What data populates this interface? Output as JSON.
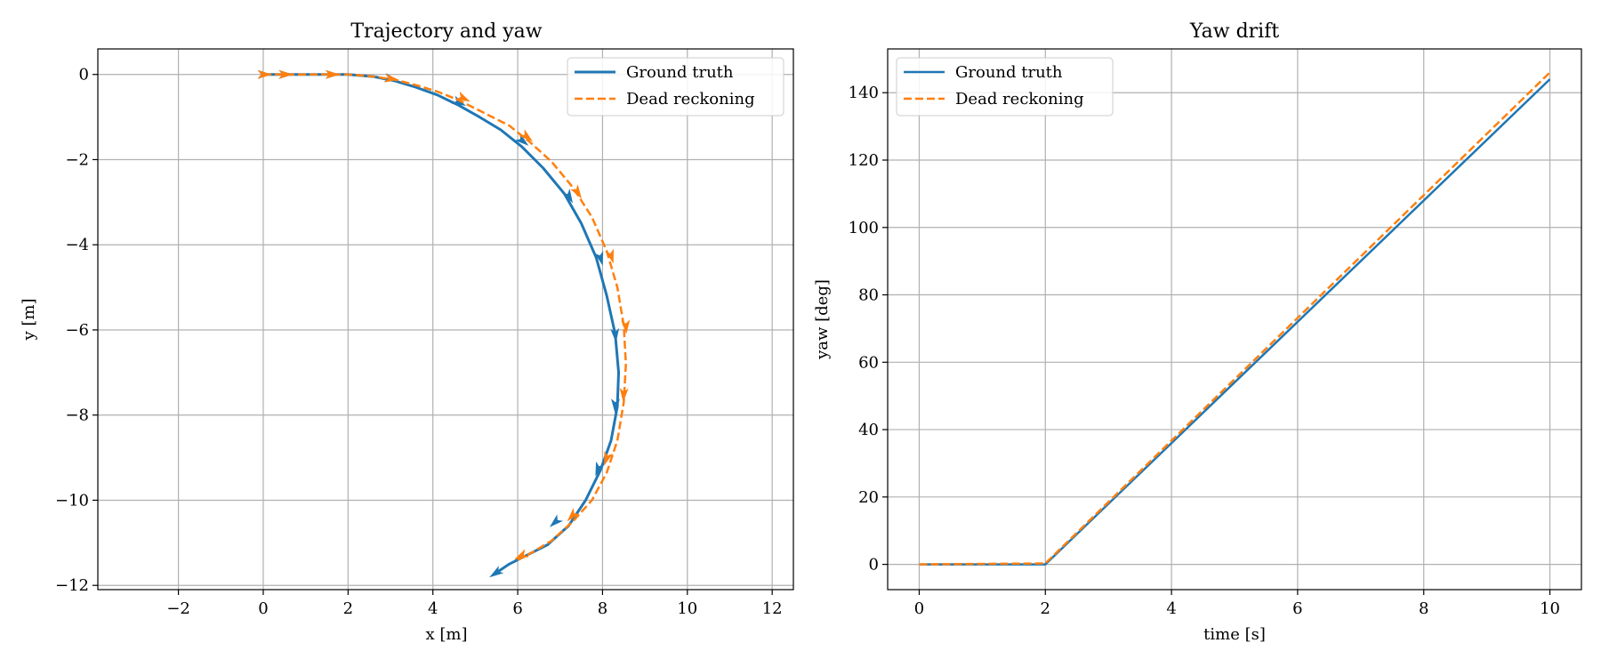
{
  "colors": {
    "ground_truth": "#1f77b4",
    "dead_reckoning": "#ff7f0e",
    "grid": "#b0b0b0",
    "axes": "#000000"
  },
  "chart_data": [
    {
      "type": "line",
      "title": "Trajectory and yaw",
      "xlabel": "x [m]",
      "ylabel": "y [m]",
      "xlim": [
        -3.9,
        12.5
      ],
      "ylim": [
        -12.1,
        0.6
      ],
      "xticks": [
        -2,
        0,
        2,
        4,
        6,
        8,
        10,
        12
      ],
      "yticks": [
        0,
        -2,
        -4,
        -6,
        -8,
        -10,
        -12
      ],
      "xtick_labels": [
        "−2",
        "0",
        "2",
        "4",
        "6",
        "8",
        "10",
        "12"
      ],
      "ytick_labels": [
        "0",
        "−2",
        "−4",
        "−6",
        "−8",
        "−10",
        "−12"
      ],
      "grid": true,
      "legend_position": "upper-right",
      "direction_arrows": true,
      "series": [
        {
          "name": "Ground truth",
          "style": "solid",
          "x": [
            0,
            0.5,
            1.0,
            1.5,
            2.0,
            2.6,
            3.1,
            3.6,
            4.1,
            4.6,
            5.1,
            5.6,
            6.1,
            6.6,
            7.1,
            7.5,
            7.85,
            8.1,
            8.3,
            8.38,
            8.35,
            8.2,
            7.95,
            7.6,
            7.2,
            6.7,
            6.2,
            5.8,
            5.5
          ],
          "y": [
            0,
            0,
            0,
            0,
            0,
            -0.05,
            -0.15,
            -0.3,
            -0.48,
            -0.72,
            -1.0,
            -1.3,
            -1.7,
            -2.2,
            -2.8,
            -3.5,
            -4.3,
            -5.2,
            -6.1,
            -7.0,
            -7.8,
            -8.6,
            -9.3,
            -10.0,
            -10.6,
            -11.05,
            -11.3,
            -11.5,
            -11.7
          ],
          "arrow_x": [
            0.0,
            0.5,
            1.6,
            3.0,
            4.6,
            6.1,
            7.2,
            7.95,
            8.3,
            8.3,
            7.9,
            6.9,
            5.5
          ],
          "arrow_y": [
            0.0,
            0.0,
            0.0,
            -0.1,
            -0.65,
            -1.55,
            -2.85,
            -4.3,
            -6.1,
            -7.75,
            -9.25,
            -10.5,
            -11.7
          ]
        },
        {
          "name": "Dead reckoning",
          "style": "dashed",
          "x": [
            0,
            0.5,
            1.0,
            1.5,
            2.0,
            2.6,
            3.1,
            3.6,
            4.1,
            4.6,
            5.2,
            5.8,
            6.3,
            6.8,
            7.3,
            7.75,
            8.1,
            8.35,
            8.5,
            8.55,
            8.5,
            8.35,
            8.1,
            7.75,
            7.3,
            6.8,
            6.3,
            6.0
          ],
          "y": [
            0,
            0,
            0,
            0,
            0,
            -0.05,
            -0.12,
            -0.25,
            -0.4,
            -0.6,
            -0.9,
            -1.2,
            -1.6,
            -2.05,
            -2.65,
            -3.35,
            -4.15,
            -5.0,
            -5.9,
            -6.8,
            -7.7,
            -8.6,
            -9.35,
            -10.0,
            -10.5,
            -10.95,
            -11.25,
            -11.4
          ],
          "arrow_x": [
            0.0,
            0.5,
            1.6,
            3.0,
            4.7,
            6.2,
            7.4,
            8.2,
            8.55,
            8.5,
            8.1,
            7.3,
            6.1
          ],
          "arrow_y": [
            0.0,
            0.0,
            0.0,
            -0.1,
            -0.55,
            -1.45,
            -2.75,
            -4.25,
            -5.9,
            -7.5,
            -9.0,
            -10.35,
            -11.3
          ]
        }
      ]
    },
    {
      "type": "line",
      "title": "Yaw drift",
      "xlabel": "time [s]",
      "ylabel": "yaw [deg]",
      "xlim": [
        -0.5,
        10.5
      ],
      "ylim": [
        -7.5,
        153
      ],
      "xticks": [
        0,
        2,
        4,
        6,
        8,
        10
      ],
      "yticks": [
        0,
        20,
        40,
        60,
        80,
        100,
        120,
        140
      ],
      "xtick_labels": [
        "0",
        "2",
        "4",
        "6",
        "8",
        "10"
      ],
      "ytick_labels": [
        "0",
        "20",
        "40",
        "60",
        "80",
        "100",
        "120",
        "140"
      ],
      "grid": true,
      "legend_position": "upper-left",
      "series": [
        {
          "name": "Ground truth",
          "style": "solid",
          "x": [
            0,
            2,
            10
          ],
          "y": [
            0,
            0,
            144
          ]
        },
        {
          "name": "Dead reckoning",
          "style": "dashed",
          "x": [
            0,
            2,
            10
          ],
          "y": [
            0,
            0.3,
            146
          ]
        }
      ]
    }
  ]
}
